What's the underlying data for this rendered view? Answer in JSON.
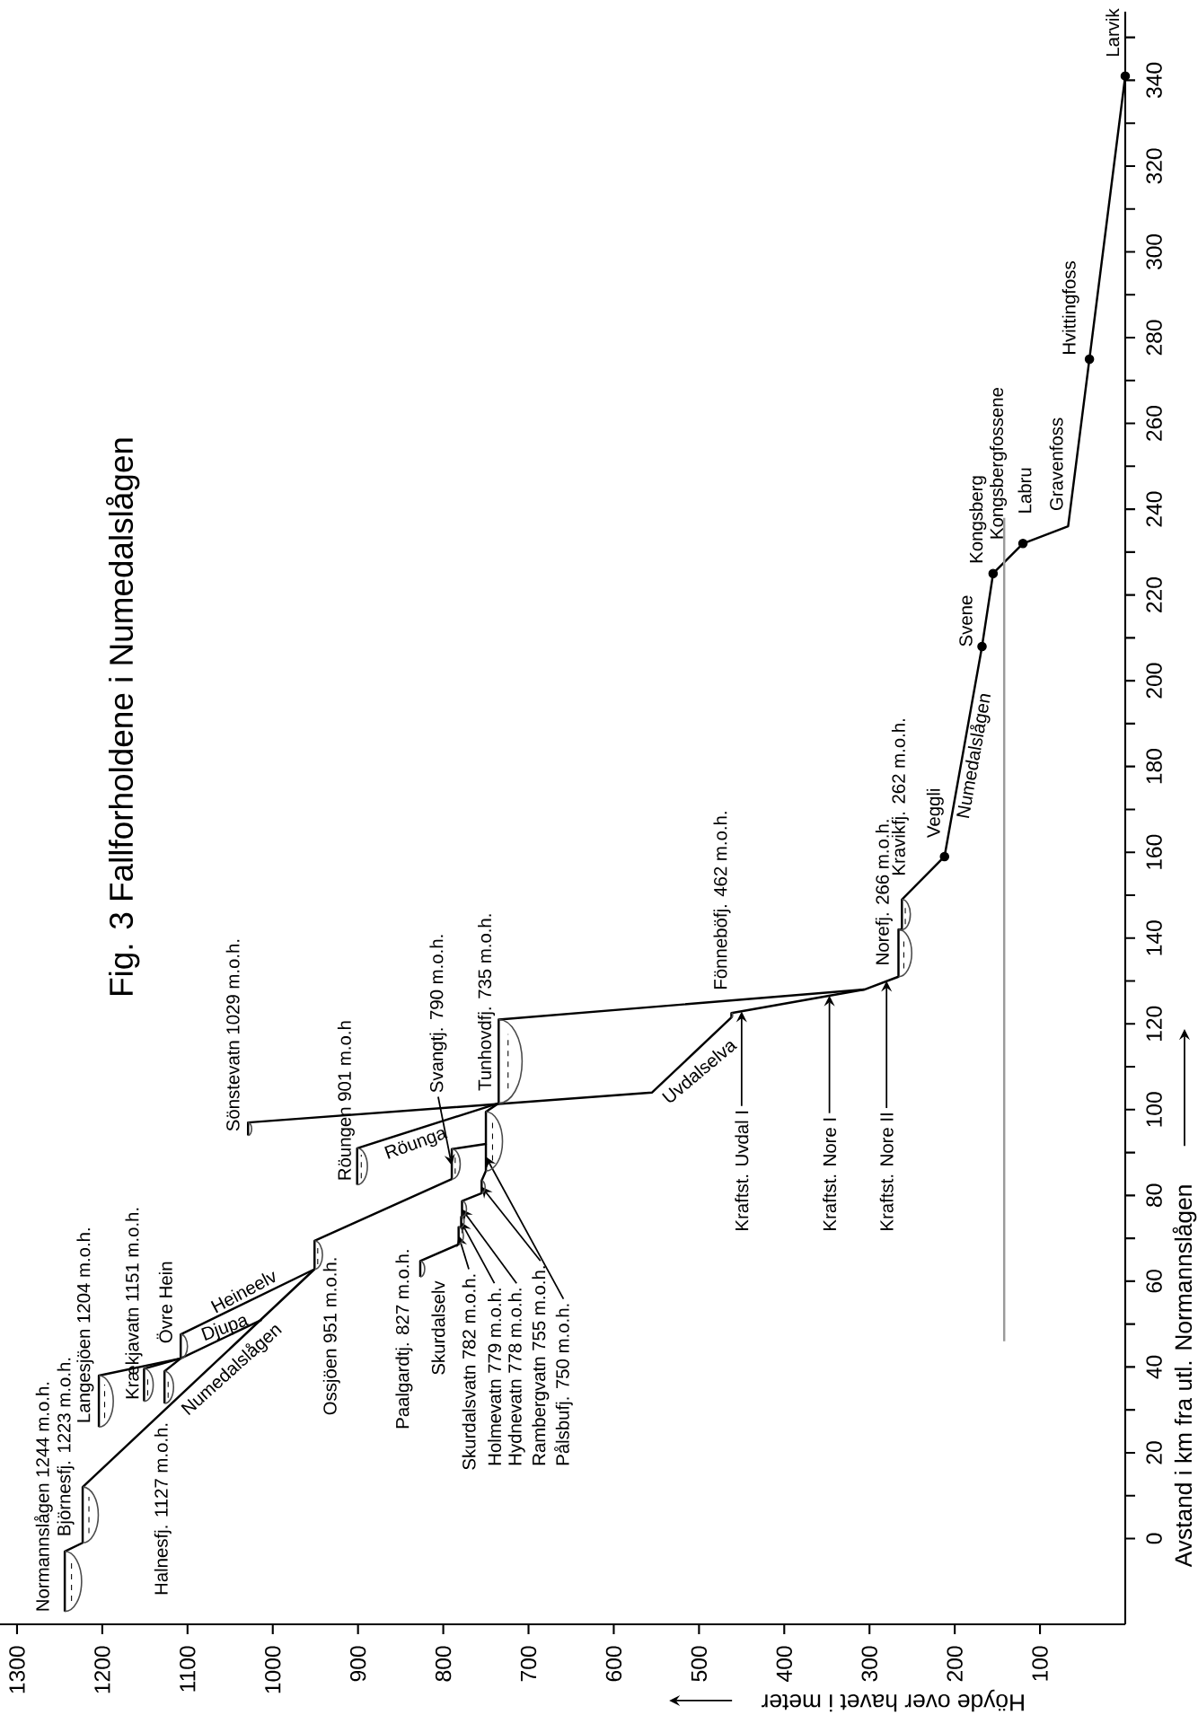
{
  "chart_data": {
    "type": "line",
    "title": "Fig. 3 Fallforholdene i Numedalslågen",
    "xlabel": "Höyde over havet i meter",
    "ylabel": "Avstand i km fra utl. Normannslågen",
    "xlim": [
      1320,
      0
    ],
    "ylim": [
      -20,
      356
    ],
    "xticks": [
      100,
      200,
      300,
      400,
      500,
      600,
      700,
      800,
      900,
      1000,
      1100,
      1200,
      1300
    ],
    "yticks": [
      0,
      {
        "value": 10,
        "label": null
      },
      20,
      {
        "value": 30,
        "label": null
      },
      40,
      {
        "value": 50,
        "label": null
      },
      60,
      {
        "value": 70,
        "label": null
      },
      80,
      {
        "value": 90,
        "label": null
      },
      100,
      {
        "value": 110,
        "label": null
      },
      120,
      {
        "value": 130,
        "label": null
      },
      140,
      {
        "value": 150,
        "label": null
      },
      160,
      {
        "value": 170,
        "label": null
      },
      180,
      {
        "value": 190,
        "label": null
      },
      200,
      {
        "value": 210,
        "label": null
      },
      220,
      {
        "value": 230,
        "label": null
      },
      240,
      {
        "value": 250,
        "label": null
      },
      260,
      {
        "value": 270,
        "label": null
      },
      280,
      {
        "value": 290,
        "label": null
      },
      300,
      {
        "value": 310,
        "label": null
      },
      320,
      {
        "value": 330,
        "label": null
      },
      340,
      {
        "value": 350,
        "label": null
      }
    ],
    "marker": "none",
    "series": [
      {
        "color": "#000000",
        "x": [
          1244,
          1244,
          1223,
          1223,
          951,
          951,
          790,
          790,
          750,
          750,
          735,
          735,
          306,
          266,
          266,
          262,
          262,
          212,
          168,
          155,
          120,
          67,
          42,
          0
        ],
        "values": [
          -17,
          -3,
          -1,
          12,
          62.8,
          69.4,
          83.8,
          90.8,
          92,
          99.5,
          101.5,
          121,
          128,
          131,
          142,
          142,
          149,
          159,
          208,
          225,
          232,
          236,
          275,
          341
        ]
      },
      {
        "color": "#000000",
        "x": [
          1204,
          1204,
          1108,
          1108,
          951
        ],
        "values": [
          26,
          38,
          42,
          47.6,
          62.8
        ]
      },
      {
        "color": "#000000",
        "x": [
          1151,
          1151,
          1108,
          1013
        ],
        "values": [
          32,
          39.6,
          42,
          51
        ]
      },
      {
        "color": "#000000",
        "x": [
          1127,
          1127,
          1108
        ],
        "values": [
          31.5,
          39,
          42
        ]
      },
      {
        "color": "#000000",
        "x": [
          827,
          827,
          782,
          782,
          779,
          779,
          778,
          778,
          755,
          755,
          750,
          750
        ],
        "values": [
          61,
          64.7,
          68.6,
          72.6,
          72.6,
          75,
          75,
          78.7,
          80.5,
          83.4,
          85.7,
          92
        ]
      },
      {
        "color": "#000000",
        "x": [
          901,
          901,
          735
        ],
        "values": [
          82.5,
          91,
          101.5
        ]
      },
      {
        "color": "#000000",
        "x": [
          1029,
          1029,
          555,
          462,
          462,
          306
        ],
        "values": [
          94,
          97,
          104,
          121.5,
          122.5,
          128
        ]
      },
      {
        "color": "#9a9a9a",
        "x": [
          142,
          142
        ],
        "values": [
          46,
          238
        ]
      },
      {
        "type": "scatter",
        "marker": "circle",
        "color": "#000000",
        "x": [
          212,
          168,
          155,
          120,
          42,
          0
        ],
        "values": [
          159,
          208,
          225,
          232,
          275,
          341
        ]
      }
    ],
    "annotations": [
      "Normannslågen 1244 m.o.h.",
      "Björnesfj. 1223 m.o.h.",
      "Langesjöen 1204 m.o.h.",
      "Krækjavatn 1151 m.o.h.",
      "Övre Hein",
      "Halnesfj. 1127 m.o.h.",
      "Heineelv",
      "Djupa",
      "Numedalslågen",
      "Ossjöen 951 m.o.h.",
      "Paalgardtj. 827 m.o.h.",
      "Skurdalselv",
      {
        "text": "Skurdalsvatn 782 m.o.h.",
        "x": 782,
        "y": 70.6
      },
      {
        "text": "Holmevatn 779 m.o.h.",
        "x": 779,
        "y": 73.8
      },
      {
        "text": "Hydnevatn 778 m.o.h.",
        "x": 778,
        "y": 76.8
      },
      {
        "text": "Rambergvatn 755 m.o.h.",
        "x": 755,
        "y": 82
      },
      {
        "text": "Pålsbufj. 750 m.o.h.",
        "x": 750,
        "y": 89
      },
      "Sönstevatn 1029 m.o.h.",
      "Röungen 901 m.o.h",
      "Röunga",
      {
        "text": "Svangtj. 790 m.o.h.",
        "x": 790,
        "y": 87
      },
      {
        "text": "Tunhovdfj. 735 m.o.h.",
        "x": 735,
        "y": 103.5
      },
      "Uvdalselva",
      "Fönneböfj. 462 m.o.h.",
      {
        "text": "Kraftst. Uvdal I",
        "x": 450,
        "y": 122.9
      },
      {
        "text": "Kraftst. Nore I",
        "x": 347,
        "y": 126.6
      },
      {
        "text": "Kraftst. Nore II",
        "x": 280,
        "y": 130
      },
      "Norefj. 266 m.o.h.",
      "Kravikfj. 262 m.o.h.",
      "Veggli",
      "Numedalslågen",
      "Svene",
      "Kongsberg",
      "Kongsbergfossene",
      "Labru",
      "Gravenfoss",
      "Hvittingfoss",
      "Larvik"
    ]
  }
}
